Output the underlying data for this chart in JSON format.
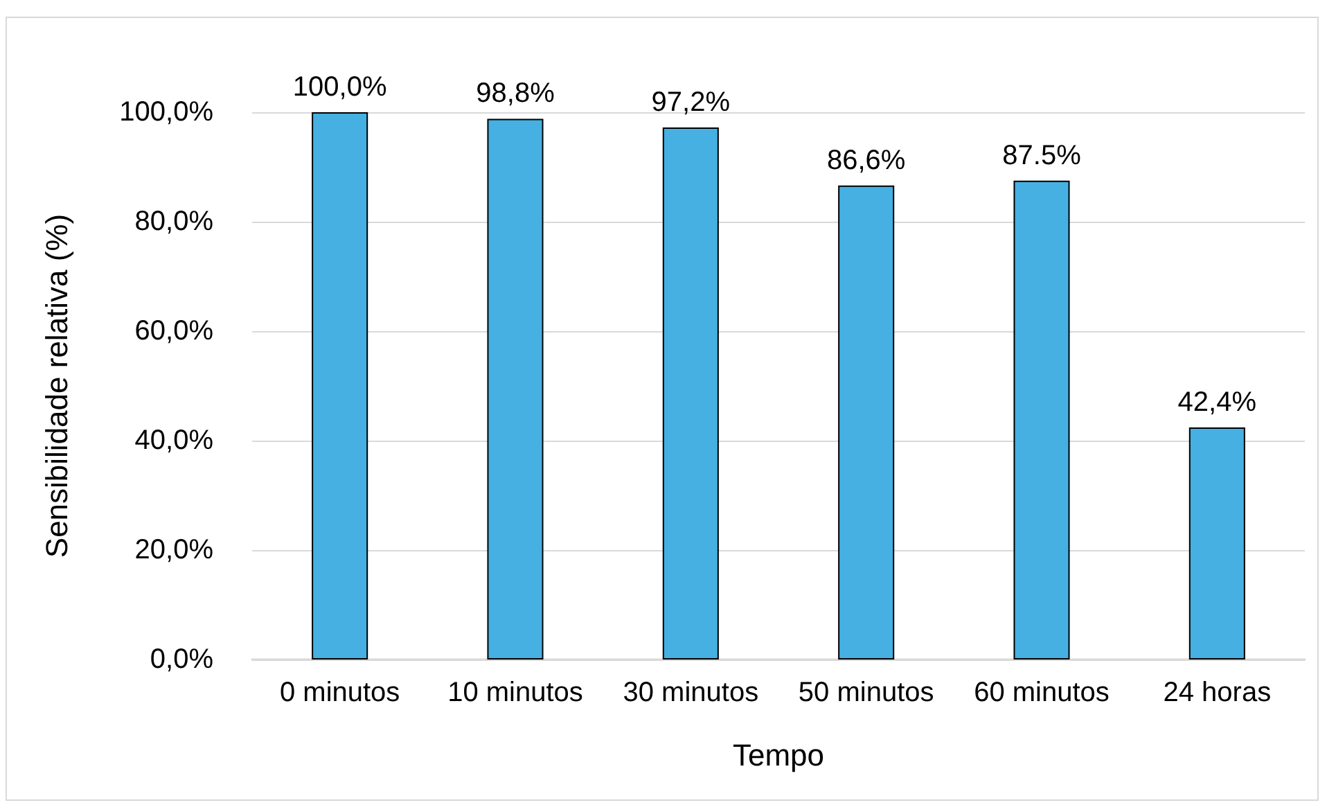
{
  "chart_data": {
    "type": "bar",
    "xlabel": "Tempo",
    "ylabel": "Sensibilidade relativa (%)",
    "categories": [
      "0 minutos",
      "10 minutos",
      "30 minutos",
      "50 minutos",
      "60 minutos",
      "24 horas"
    ],
    "values": [
      100.0,
      98.8,
      97.2,
      86.6,
      87.5,
      42.4
    ],
    "value_labels": [
      "100,0%",
      "98,8%",
      "97,2%",
      "86,6%",
      "87.5%",
      "42,4%"
    ],
    "color": "#45b0e1",
    "ylim": [
      0,
      100
    ],
    "yticks": [
      {
        "value": 0,
        "label": "0,0%"
      },
      {
        "value": 20,
        "label": "20,0%"
      },
      {
        "value": 40,
        "label": "40,0%"
      },
      {
        "value": 60,
        "label": "60,0%"
      },
      {
        "value": 80,
        "label": "80,0%"
      },
      {
        "value": 100,
        "label": "100,0%"
      }
    ],
    "grid": "y"
  }
}
